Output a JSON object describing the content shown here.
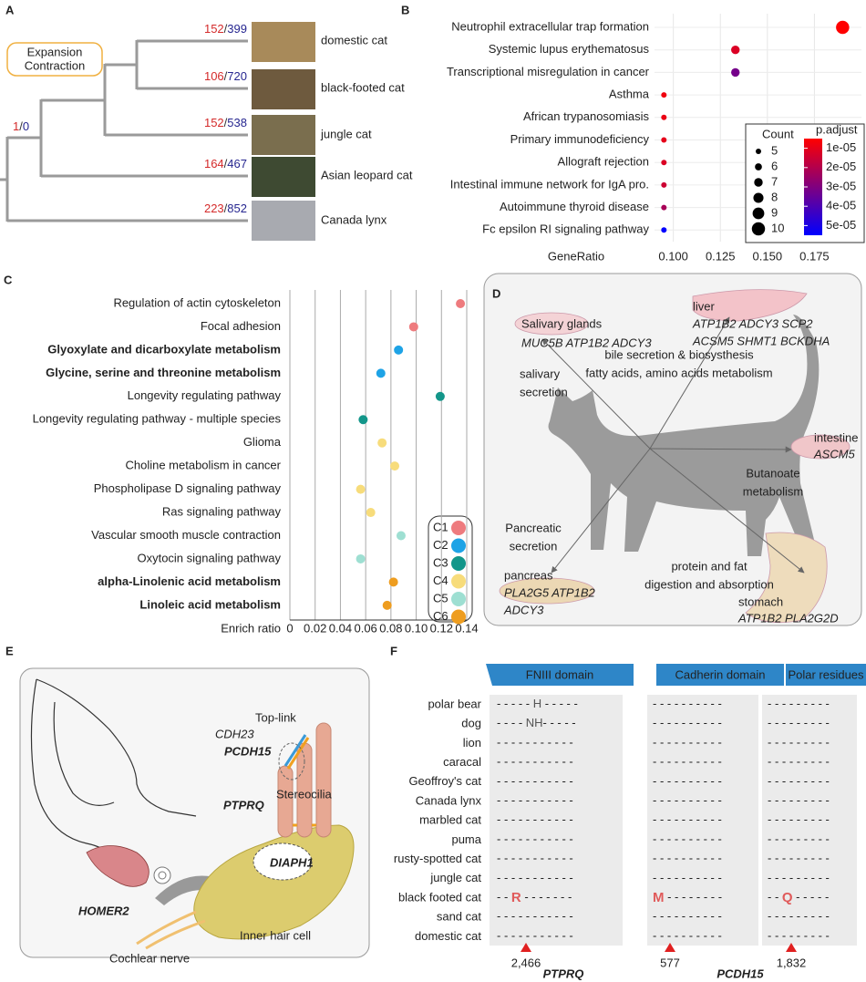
{
  "panel_labels": [
    "A",
    "B",
    "C",
    "D",
    "E",
    "F"
  ],
  "panel_a": {
    "legend": [
      "Expansion",
      "Contraction"
    ],
    "separator": "/",
    "root": {
      "expansion": 1,
      "contraction": 0
    },
    "species": [
      {
        "name": "domestic cat",
        "expansion": 152,
        "contraction": 399
      },
      {
        "name": "black-footed cat",
        "expansion": 106,
        "contraction": 720,
        "color": "#d42a2a"
      },
      {
        "name": "jungle cat",
        "expansion": 152,
        "contraction": 538
      },
      {
        "name": "Asian leopard cat",
        "expansion": 164,
        "contraction": 467
      },
      {
        "name": "Canada lynx",
        "expansion": 223,
        "contraction": 852
      }
    ]
  },
  "chart_data": [
    {
      "type": "bubble",
      "categories": [
        "Neutrophil extracellular trap formation",
        "Systemic lupus erythematosus",
        "Transcriptional misregulation in cancer",
        "Asthma",
        "African trypanosomiasis",
        "Primary immunodeficiency",
        "Allograft rejection",
        "Intestinal immune network for IgA pro.",
        "Autoimmune thyroid disease",
        "Fc epsilon RI signaling pathway"
      ],
      "values": [
        0.19,
        0.133,
        0.133,
        0.095,
        0.095,
        0.095,
        0.095,
        0.095,
        0.095,
        0.095
      ],
      "counts": [
        10,
        7,
        7,
        5,
        5,
        5,
        5,
        5,
        5,
        5
      ],
      "p_adjust": [
        5e-06,
        1.2e-05,
        3.2e-05,
        8e-06,
        9e-06,
        1e-05,
        1.2e-05,
        1.5e-05,
        2.2e-05,
        5.5e-05
      ],
      "x_label": "GeneRatio",
      "xlim": [
        0.09,
        0.2
      ],
      "xticks": [
        {
          "value": 0.1,
          "label": "0.100"
        },
        0.125,
        {
          "value": 0.15,
          "label": "0.150"
        },
        0.175
      ],
      "size_title": "Count",
      "size_legend": [
        5,
        6,
        7,
        8,
        9,
        10
      ],
      "color_title": "p.adjust",
      "colors": [
        "#ff0000",
        "#0000ff"
      ],
      "colorbar_lim": [
        5e-06,
        5.5e-05
      ],
      "colorbar_ticks": [
        {
          "value": 1e-05,
          "label": "1e-05"
        },
        {
          "value": 2e-05,
          "label": "2e-05"
        },
        {
          "value": 3e-05,
          "label": "3e-05"
        },
        {
          "value": 4e-05,
          "label": "4e-05"
        },
        {
          "value": 5e-05,
          "label": "5e-05"
        }
      ],
      "grid": true
    },
    {
      "type": "dot",
      "categories": [
        "Regulation of actin cytoskeleton",
        "Focal adhesion",
        "Glyoxylate and dicarboxylate metabolism",
        "Glycine, serine and threonine metabolism",
        "Longevity regulating pathway",
        "Longevity regulating pathway - multiple species",
        "Glioma",
        "Choline metabolism in cancer",
        "Phospholipase D signaling pathway",
        "Ras signaling pathway",
        "Vascular smooth muscle contraction",
        "Oxytocin signaling pathway",
        "alpha-Linolenic acid metabolism",
        "Linoleic acid metabolism"
      ],
      "values": [
        0.135,
        0.098,
        0.086,
        0.072,
        0.119,
        0.058,
        0.073,
        0.083,
        0.056,
        0.064,
        0.088,
        0.056,
        0.082,
        0.077
      ],
      "cluster": [
        "C1",
        "C1",
        "C2",
        "C2",
        "C3",
        "C3",
        "C4",
        "C4",
        "C4",
        "C4",
        "C5",
        "C5",
        "C6",
        "C6"
      ],
      "bold": [
        false,
        false,
        true,
        true,
        false,
        false,
        false,
        false,
        false,
        false,
        false,
        false,
        true,
        true
      ],
      "clusters": [
        {
          "name": "C1",
          "color": "#ee7b7e"
        },
        {
          "name": "C2",
          "color": "#1ea3e6"
        },
        {
          "name": "C3",
          "color": "#13968a"
        },
        {
          "name": "C4",
          "color": "#f7dc7b"
        },
        {
          "name": "C5",
          "color": "#9edfd2"
        },
        {
          "name": "C6",
          "color": "#ee9d1f"
        }
      ],
      "x_label": "Enrich ratio",
      "xlim": [
        0,
        0.14
      ],
      "xticks": [
        0,
        0.02,
        0.04,
        0.06,
        0.08,
        {
          "value": 0.1,
          "label": "0.10"
        },
        0.12,
        0.14
      ],
      "grid": true
    }
  ],
  "panel_d": {
    "salivary": {
      "organ": "Salivary glands",
      "genes": [
        "MUC5B ATP1B2 ADCY3"
      ],
      "function": [
        "salivary",
        "secretion"
      ]
    },
    "liver": {
      "organ": "liver",
      "genes": [
        "ATP1B2 ADCY3 SCP2",
        "ACSM5 SHMT1 BCKDHA"
      ],
      "function": [
        "bile secretion & biosysthesis",
        "fatty acids, amino acids metabolism"
      ]
    },
    "intestine": {
      "organ": "intestine",
      "genes": [
        "ASCM5"
      ],
      "function": [
        "Butanoate",
        "metabolism"
      ]
    },
    "pancreas": {
      "organ": "pancreas",
      "genes": [
        "PLA2G5 ATP1B2",
        "ADCY3"
      ],
      "function": [
        "Pancreatic",
        "secretion"
      ]
    },
    "stomach": {
      "organ": "stomach",
      "genes": [
        "ATP1B2 PLA2G2D"
      ],
      "function": [
        "protein and fat",
        "digestion and absorption"
      ]
    }
  },
  "panel_e": {
    "top_link": "Top-link",
    "cdh23": "CDH23",
    "pcdh15": "PCDH15",
    "stereocilia": "Stereocilia",
    "ptprq": "PTPRQ",
    "diaph1": "DIAPH1",
    "homer2": "HOMER2",
    "inner_hair_cell": "Inner hair cell",
    "cochlear_nerve": "Cochlear nerve"
  },
  "panel_f": {
    "domains": [
      "FNIII domain",
      "Cadherin domain",
      "Polar residues"
    ],
    "species": [
      {
        "name": "polar bear",
        "alignment": [
          "- - - - - H - - - - -",
          "- - - - - - - - - -",
          "- - - - - - - - -"
        ]
      },
      {
        "name": "dog",
        "alignment": [
          "- - - - NH- - - - -",
          "- - - - - - - - - -",
          "- - - - - - - - -"
        ]
      },
      {
        "name": "lion",
        "alignment": [
          "- - - - - - - - - - -",
          "- - - - - - - - - -",
          "- - - - - - - - -"
        ]
      },
      {
        "name": "caracal",
        "alignment": [
          "- - - - - - - - - - -",
          "- - - - - - - - - -",
          "- - - - - - - - -"
        ]
      },
      {
        "name": "Geoffroy's cat",
        "alignment": [
          "- - - - - - - - - - -",
          "- - - - - - - - - -",
          "- - - - - - - - -"
        ]
      },
      {
        "name": "Canada lynx",
        "alignment": [
          "- - - - - - - - - - -",
          "- - - - - - - - - -",
          "- - - - - - - - -"
        ]
      },
      {
        "name": "marbled cat",
        "alignment": [
          "- - - - - - - - - - -",
          "- - - - - - - - - -",
          "- - - - - - - - -"
        ]
      },
      {
        "name": "puma",
        "alignment": [
          "- - - - - - - - - - -",
          "- - - - - - - - - -",
          "- - - - - - - - -"
        ]
      },
      {
        "name": "rusty-spotted cat",
        "alignment": [
          "- - - - - - - - - - -",
          "- - - - - - - - - -",
          "- - - - - - - - -"
        ]
      },
      {
        "name": "jungle cat",
        "alignment": [
          "- - - - - - - - - - -",
          "- - - - - - - - - -",
          "- - - - - - - - -"
        ]
      },
      {
        "name": "black footed cat",
        "alignment": [
          "- - R - - - - - - -",
          "M - - - - - - - -",
          "- - Q - - - - -"
        ],
        "color": "#e05a5a"
      },
      {
        "name": "sand cat",
        "alignment": [
          "- - - - - - - - - - -",
          "- - - - - - - - - -",
          "- - - - - - - - -"
        ]
      },
      {
        "name": "domestic cat",
        "alignment": [
          "- - - - - - - - - - -",
          "- - - - - - - - - -",
          "- - - - - - - - -"
        ]
      }
    ],
    "sites": [
      "2,466",
      "577",
      "1,832"
    ],
    "genes": [
      "PTPRQ",
      "PCDH15"
    ]
  }
}
